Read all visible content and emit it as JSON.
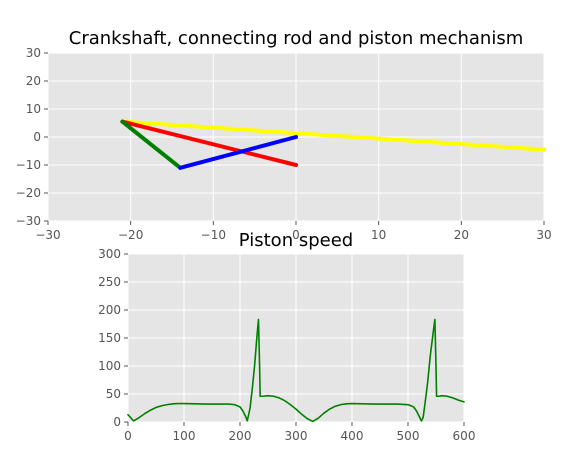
{
  "chart_data": [
    {
      "type": "line",
      "title": "Crankshaft, connecting rod and piston mechanism",
      "xlabel": "",
      "ylabel": "",
      "xlim": [
        -30,
        30
      ],
      "ylim": [
        -30,
        30
      ],
      "xticks": [
        -30,
        -20,
        -10,
        0,
        10,
        20,
        30
      ],
      "yticks": [
        -30,
        -20,
        -10,
        0,
        10,
        20,
        30
      ],
      "grid": true,
      "series": [
        {
          "color": "#ffff00",
          "x": [
            -21,
            30
          ],
          "y": [
            5.5,
            -4.5
          ]
        },
        {
          "color": "#ff0000",
          "x": [
            -21,
            0
          ],
          "y": [
            5.5,
            -10
          ]
        },
        {
          "color": "#008000",
          "x": [
            -21,
            -14
          ],
          "y": [
            5.5,
            -11
          ]
        },
        {
          "color": "#0000ff",
          "x": [
            -14,
            0
          ],
          "y": [
            -11,
            0
          ]
        }
      ]
    },
    {
      "type": "line",
      "title": "Piston speed",
      "xlabel": "",
      "ylabel": "",
      "xlim": [
        0,
        600
      ],
      "ylim": [
        0,
        300
      ],
      "xticks": [
        0,
        100,
        200,
        300,
        400,
        500,
        600
      ],
      "yticks": [
        0,
        50,
        100,
        150,
        200,
        250,
        300
      ],
      "grid": true,
      "series": [
        {
          "color": "#008000",
          "x": [
            0,
            10,
            20,
            30,
            40,
            50,
            60,
            70,
            80,
            90,
            100,
            120,
            140,
            160,
            180,
            190,
            200,
            205,
            210,
            213,
            218,
            222,
            226,
            230,
            233,
            235,
            236,
            240,
            250,
            260,
            270,
            280,
            290,
            300,
            310,
            320,
            330,
            340,
            350,
            360,
            370,
            380,
            390,
            400,
            420,
            440,
            460,
            480,
            500,
            510,
            515,
            520,
            524,
            527,
            530,
            535,
            540,
            545,
            548,
            550,
            551,
            555,
            560,
            570,
            580,
            590,
            600
          ],
          "y": [
            13,
            2,
            8,
            15,
            21,
            26,
            29,
            31,
            32.5,
            33,
            33,
            32.5,
            32,
            32,
            32,
            31,
            27,
            20,
            10,
            2,
            25,
            60,
            100,
            150,
            183,
            100,
            46,
            46,
            47,
            46,
            43,
            38,
            31,
            23,
            14,
            6,
            1,
            7,
            16,
            23,
            28,
            31,
            32.5,
            33,
            32.5,
            32,
            32,
            32,
            31,
            27,
            20,
            10,
            2,
            8,
            30,
            70,
            120,
            160,
            183,
            100,
            46,
            46,
            47,
            46,
            43,
            39,
            36
          ]
        }
      ]
    }
  ]
}
